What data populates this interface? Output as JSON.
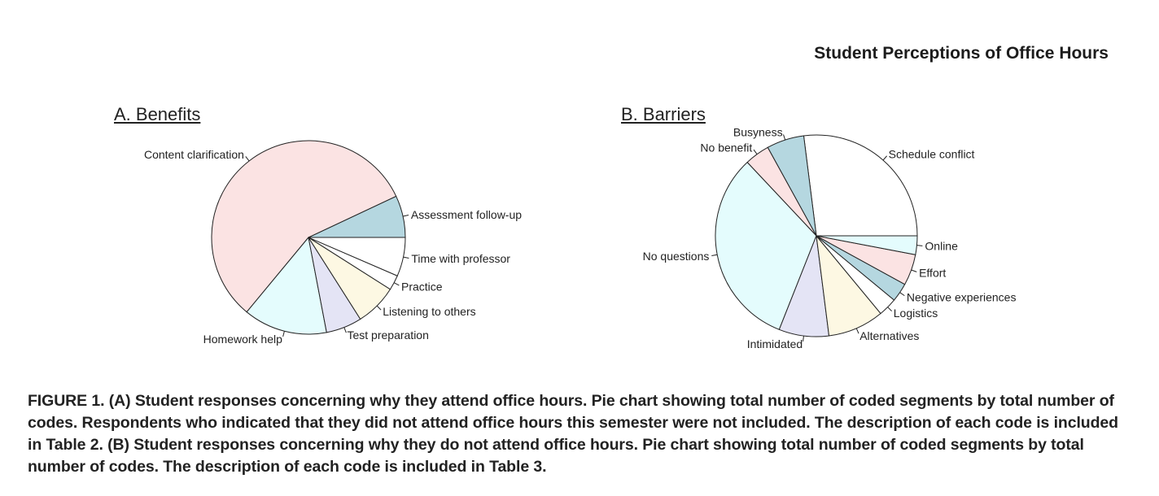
{
  "header": {
    "running_title": "Student Perceptions of Office Hours"
  },
  "chart_data": [
    {
      "type": "pie",
      "title": "A. Benefits",
      "start_angle_deg": 0,
      "direction": "counterclockwise",
      "categories": [
        "Assessment follow-up",
        "Content clarification",
        "Homework help",
        "Test preparation",
        "Listening to others",
        "Practice",
        "Time with professor"
      ],
      "values": [
        7,
        57,
        14,
        6,
        7,
        2.5,
        6.5
      ],
      "colors": [
        "#b5d7e0",
        "#fbe3e3",
        "#e4fcfd",
        "#e4e4f5",
        "#fdf8e3",
        "#ffffff",
        "#ffffff"
      ]
    },
    {
      "type": "pie",
      "title": "B. Barriers",
      "start_angle_deg": 0,
      "direction": "counterclockwise",
      "categories": [
        "Schedule conflict",
        "Busyness",
        "No benefit",
        "No questions",
        "Intimidated",
        "Alternatives",
        "Logistics",
        "Negative experiences",
        "Effort",
        "Online"
      ],
      "values": [
        27,
        6,
        4,
        32,
        8,
        9,
        3,
        3,
        5,
        3
      ],
      "colors": [
        "#ffffff",
        "#b5d7e0",
        "#fbe3e3",
        "#e4fcfd",
        "#e4e4f5",
        "#fdf8e3",
        "#ffffff",
        "#b5d7e0",
        "#fbe3e3",
        "#e4fcfd"
      ]
    }
  ],
  "caption": "FIGURE 1.  (A) Student responses concerning why they attend office hours. Pie chart showing total number of coded segments by total number of codes. Respondents who indicated that they did not attend office hours this semester were not included. The description of each code is included in Table 2. (B) Student responses concerning why they do not attend office hours. Pie chart showing total number of coded segments by total number of codes. The description of each code is included in Table 3."
}
